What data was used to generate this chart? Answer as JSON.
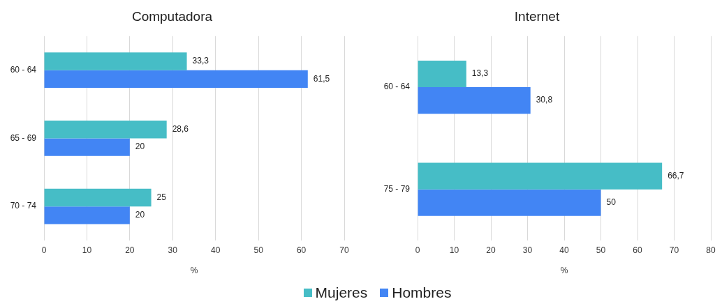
{
  "chart_data": [
    {
      "type": "bar",
      "orientation": "horizontal",
      "title": "Computadora",
      "xlabel": "%",
      "categories": [
        "60 - 64",
        "65 - 69",
        "70 - 74"
      ],
      "series": [
        {
          "name": "Mujeres",
          "color": "#46bdc6",
          "values": [
            33.3,
            28.6,
            25
          ],
          "value_labels": [
            "33,3",
            "28,6",
            "25"
          ]
        },
        {
          "name": "Hombres",
          "color": "#4285f4",
          "values": [
            61.5,
            20,
            20
          ],
          "value_labels": [
            "61,5",
            "20",
            "20"
          ]
        }
      ],
      "xlim": [
        0,
        70
      ],
      "xticks": [
        0,
        10,
        20,
        30,
        40,
        50,
        60,
        70
      ],
      "grid": "x",
      "legend": "bottom"
    },
    {
      "type": "bar",
      "orientation": "horizontal",
      "title": "Internet",
      "xlabel": "%",
      "categories": [
        "60 - 64",
        "75 - 79"
      ],
      "series": [
        {
          "name": "Mujeres",
          "color": "#46bdc6",
          "values": [
            13.3,
            66.7
          ],
          "value_labels": [
            "13,3",
            "66,7"
          ]
        },
        {
          "name": "Hombres",
          "color": "#4285f4",
          "values": [
            30.8,
            50
          ],
          "value_labels": [
            "30,8",
            "50"
          ]
        }
      ],
      "xlim": [
        0,
        80
      ],
      "xticks": [
        0,
        10,
        20,
        30,
        40,
        50,
        60,
        70,
        80
      ],
      "grid": "x",
      "legend": "bottom"
    }
  ]
}
